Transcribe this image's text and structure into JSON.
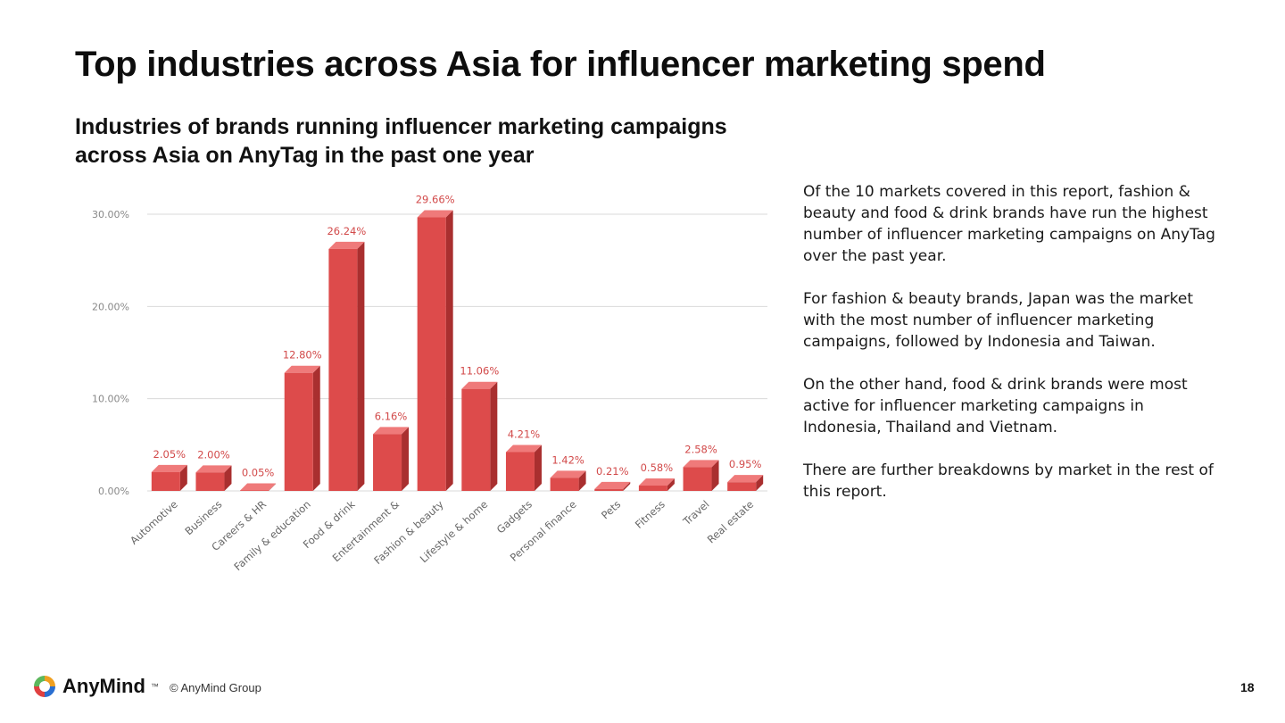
{
  "slide": {
    "title": "Top industries across Asia for influencer marketing spend",
    "subtitle": "Industries of brands running influencer marketing campaigns across Asia on AnyTag in the past one year",
    "page_number": "18"
  },
  "commentary": {
    "paragraphs": [
      "Of the 10 markets covered in this report, fashion & beauty and food & drink brands have run the highest number of influencer marketing campaigns on AnyTag over the past year.",
      "For fashion & beauty brands, Japan was the market with the most number of influencer marketing campaigns, followed by Indonesia and Taiwan.",
      "On the other hand, food & drink brands were most active for influencer marketing campaigns in Indonesia, Thailand and Vietnam.",
      "There are further breakdowns by market in the rest of this report."
    ]
  },
  "footer": {
    "brand": "AnyMind",
    "trademark": "™",
    "copyright": "© AnyMind Group"
  },
  "colors": {
    "bar_front": "#dd4b4b",
    "bar_side": "#a92f2f",
    "bar_top": "#ef7a7a",
    "data_label": "#d24a4a",
    "gridline": "#d9d9d9",
    "logo_green": "#5cb85c",
    "logo_orange": "#f0a020",
    "logo_blue": "#2a6fd1",
    "logo_red": "#e04040"
  },
  "chart_data": {
    "type": "bar",
    "categories": [
      "Automotive",
      "Business",
      "Careers & HR",
      "Family & education",
      "Food & drink",
      "Entertainment &",
      "Fashion & beauty",
      "Lifestyle & home",
      "Gadgets",
      "Personal finance",
      "Pets",
      "Fitness",
      "Travel",
      "Real estate"
    ],
    "values": [
      2.05,
      2.0,
      0.05,
      12.8,
      26.24,
      6.16,
      29.66,
      11.06,
      4.21,
      1.42,
      0.21,
      0.58,
      2.58,
      0.95
    ],
    "value_labels": [
      "2.05%",
      "2.00%",
      "0.05%",
      "12.80%",
      "26.24%",
      "6.16%",
      "29.66%",
      "11.06%",
      "4.21%",
      "1.42%",
      "0.21%",
      "0.58%",
      "2.58%",
      "0.95%"
    ],
    "yticks": [
      0,
      10,
      20,
      30
    ],
    "ytick_labels": [
      "0.00%",
      "10.00%",
      "20.00%",
      "30.00%"
    ],
    "ylim": [
      0,
      30
    ],
    "grid": true,
    "legend": "none",
    "style": "3d"
  }
}
